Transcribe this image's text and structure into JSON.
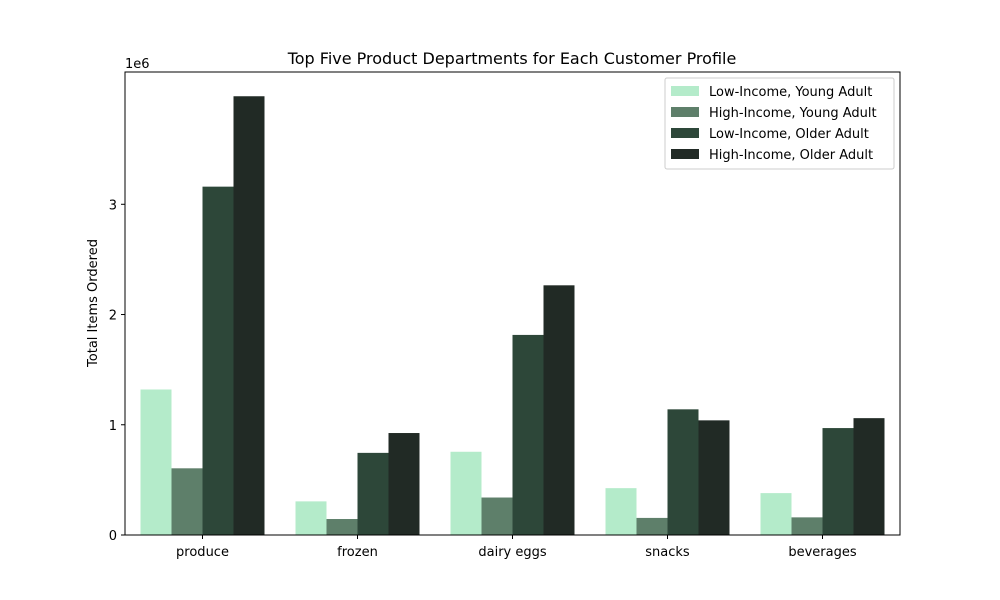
{
  "chart_data": {
    "type": "bar",
    "title": "Top Five Product Departments for Each Customer Profile",
    "xlabel": "",
    "ylabel": "Total Items Ordered",
    "y_offset_label": "1e6",
    "ylim": [
      0,
      4200000
    ],
    "yticks": [
      {
        "value": 0,
        "label": "0"
      },
      {
        "value": 1000000,
        "label": "1"
      },
      {
        "value": 2000000,
        "label": "2"
      },
      {
        "value": 3000000,
        "label": "3"
      }
    ],
    "categories": [
      "produce",
      "frozen",
      "dairy eggs",
      "snacks",
      "beverages"
    ],
    "series": [
      {
        "name": "Low-Income, Young Adult",
        "color": "#b4ebca",
        "values": [
          1320000,
          305000,
          755000,
          425000,
          380000
        ]
      },
      {
        "name": "High-Income, Young Adult",
        "color": "#5e7f6a",
        "values": [
          605000,
          145000,
          340000,
          155000,
          160000
        ]
      },
      {
        "name": "Low-Income, Older Adult",
        "color": "#2d4739",
        "values": [
          3160000,
          745000,
          1815000,
          1140000,
          970000
        ]
      },
      {
        "name": "High-Income, Older Adult",
        "color": "#212a25",
        "values": [
          3980000,
          925000,
          2265000,
          1040000,
          1060000
        ]
      }
    ],
    "legend_position": "top-right",
    "grid": false
  }
}
